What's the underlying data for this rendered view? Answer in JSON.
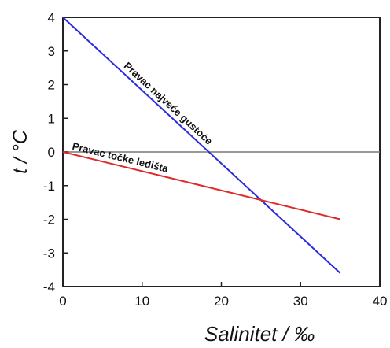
{
  "chart_data": {
    "type": "line",
    "title": "",
    "xlabel": "Salinitet / ‰",
    "ylabel": "t / °C",
    "xlim": [
      0,
      40
    ],
    "ylim": [
      -4,
      4
    ],
    "xticks": [
      "0",
      "10",
      "20",
      "30",
      "40"
    ],
    "yticks": [
      "4",
      "3",
      "2",
      "1",
      "0",
      "-1",
      "-2",
      "-3",
      "-4"
    ],
    "grid": false,
    "legend": "none",
    "reference_line_y": 0,
    "series": [
      {
        "name": "Pravac najveće gustoće",
        "color": "#2a2adf",
        "x": [
          0,
          35
        ],
        "y": [
          4,
          -3.6
        ]
      },
      {
        "name": "Pravac točke ledišta",
        "color": "#e02a2a",
        "x": [
          0,
          35
        ],
        "y": [
          0,
          -2.0
        ]
      }
    ],
    "annotations": [
      {
        "text": "Pravac najveće gustoće",
        "series": 0
      },
      {
        "text": "Pravac točke ledišta",
        "series": 1
      }
    ]
  }
}
